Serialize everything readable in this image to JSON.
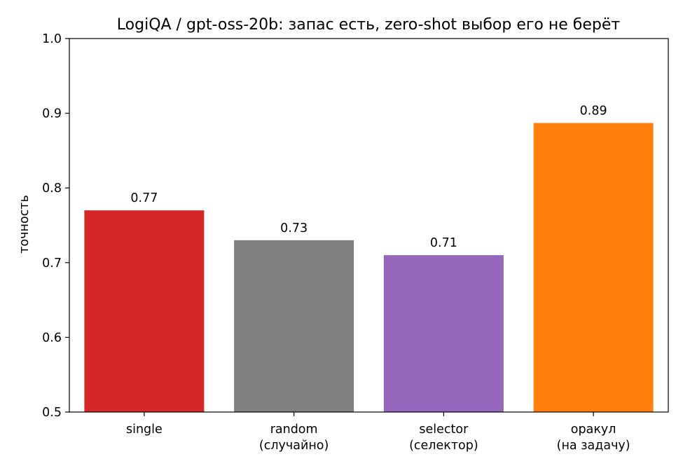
{
  "chart_data": {
    "type": "bar",
    "title": "LogiQA / gpt-oss-20b: запас есть, zero-shot выбор его не берёт",
    "xlabel": "",
    "ylabel": "точность",
    "ylim": [
      0.5,
      1.0
    ],
    "yticks": [
      0.5,
      0.6,
      0.7,
      0.8,
      0.9,
      1.0
    ],
    "ytick_labels": [
      "0.5",
      "0.6",
      "0.7",
      "0.8",
      "0.9",
      "1.0"
    ],
    "grid": false,
    "categories": [
      [
        "single"
      ],
      [
        "random",
        "(случайно)"
      ],
      [
        "selector",
        "(селектор)"
      ],
      [
        "оракул",
        "(на задачу)"
      ]
    ],
    "values": [
      0.77,
      0.73,
      0.71,
      0.887
    ],
    "data_labels": [
      "0.77",
      "0.73",
      "0.71",
      "0.89"
    ],
    "colors": [
      "#d62728",
      "#7f7f7f",
      "#9467bd",
      "#ff7f0e"
    ]
  }
}
